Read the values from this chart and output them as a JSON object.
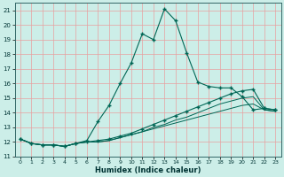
{
  "xlabel": "Humidex (Indice chaleur)",
  "bg_color": "#cceee8",
  "grid_color": "#e8a0a0",
  "line_color": "#006655",
  "xlim": [
    -0.5,
    23.5
  ],
  "ylim": [
    11,
    21.5
  ],
  "yticks": [
    11,
    12,
    13,
    14,
    15,
    16,
    17,
    18,
    19,
    20,
    21
  ],
  "xticks": [
    0,
    1,
    2,
    3,
    4,
    5,
    6,
    7,
    8,
    9,
    10,
    11,
    12,
    13,
    14,
    15,
    16,
    17,
    18,
    19,
    20,
    21,
    22,
    23
  ],
  "series1_x": [
    0,
    1,
    2,
    3,
    4,
    5,
    6,
    7,
    8,
    9,
    10,
    11,
    12,
    13,
    14,
    15,
    16,
    17,
    18,
    19,
    20,
    21,
    22,
    23
  ],
  "series1_y": [
    12.2,
    11.9,
    11.8,
    11.8,
    11.7,
    11.9,
    12.1,
    13.4,
    14.5,
    16.0,
    17.4,
    19.4,
    19.0,
    21.1,
    20.3,
    18.1,
    16.1,
    15.8,
    15.7,
    15.7,
    15.1,
    14.2,
    14.3,
    14.2
  ],
  "series2_x": [
    0,
    1,
    2,
    3,
    4,
    5,
    6,
    7,
    8,
    9,
    10,
    11,
    12,
    13,
    14,
    15,
    16,
    17,
    18,
    19,
    20,
    21,
    22,
    23
  ],
  "series2_y": [
    12.2,
    11.9,
    11.8,
    11.8,
    11.7,
    11.9,
    12.0,
    12.1,
    12.2,
    12.4,
    12.6,
    12.9,
    13.2,
    13.5,
    13.8,
    14.1,
    14.4,
    14.7,
    15.0,
    15.3,
    15.5,
    15.6,
    14.3,
    14.2
  ],
  "series3_x": [
    0,
    1,
    2,
    3,
    4,
    5,
    6,
    7,
    8,
    9,
    10,
    11,
    12,
    13,
    14,
    15,
    16,
    17,
    18,
    19,
    20,
    21,
    22,
    23
  ],
  "series3_y": [
    12.2,
    11.9,
    11.8,
    11.8,
    11.7,
    11.9,
    12.0,
    12.0,
    12.1,
    12.3,
    12.5,
    12.7,
    13.0,
    13.2,
    13.5,
    13.7,
    14.0,
    14.3,
    14.6,
    14.8,
    15.0,
    15.1,
    14.2,
    14.1
  ],
  "series4_x": [
    0,
    1,
    2,
    3,
    4,
    5,
    6,
    7,
    8,
    9,
    10,
    11,
    12,
    13,
    14,
    15,
    16,
    17,
    18,
    19,
    20,
    21,
    22,
    23
  ],
  "series4_y": [
    12.2,
    11.9,
    11.8,
    11.8,
    11.7,
    11.9,
    12.0,
    12.0,
    12.1,
    12.3,
    12.5,
    12.7,
    12.9,
    13.1,
    13.3,
    13.5,
    13.7,
    13.9,
    14.1,
    14.3,
    14.5,
    14.6,
    14.2,
    14.1
  ]
}
